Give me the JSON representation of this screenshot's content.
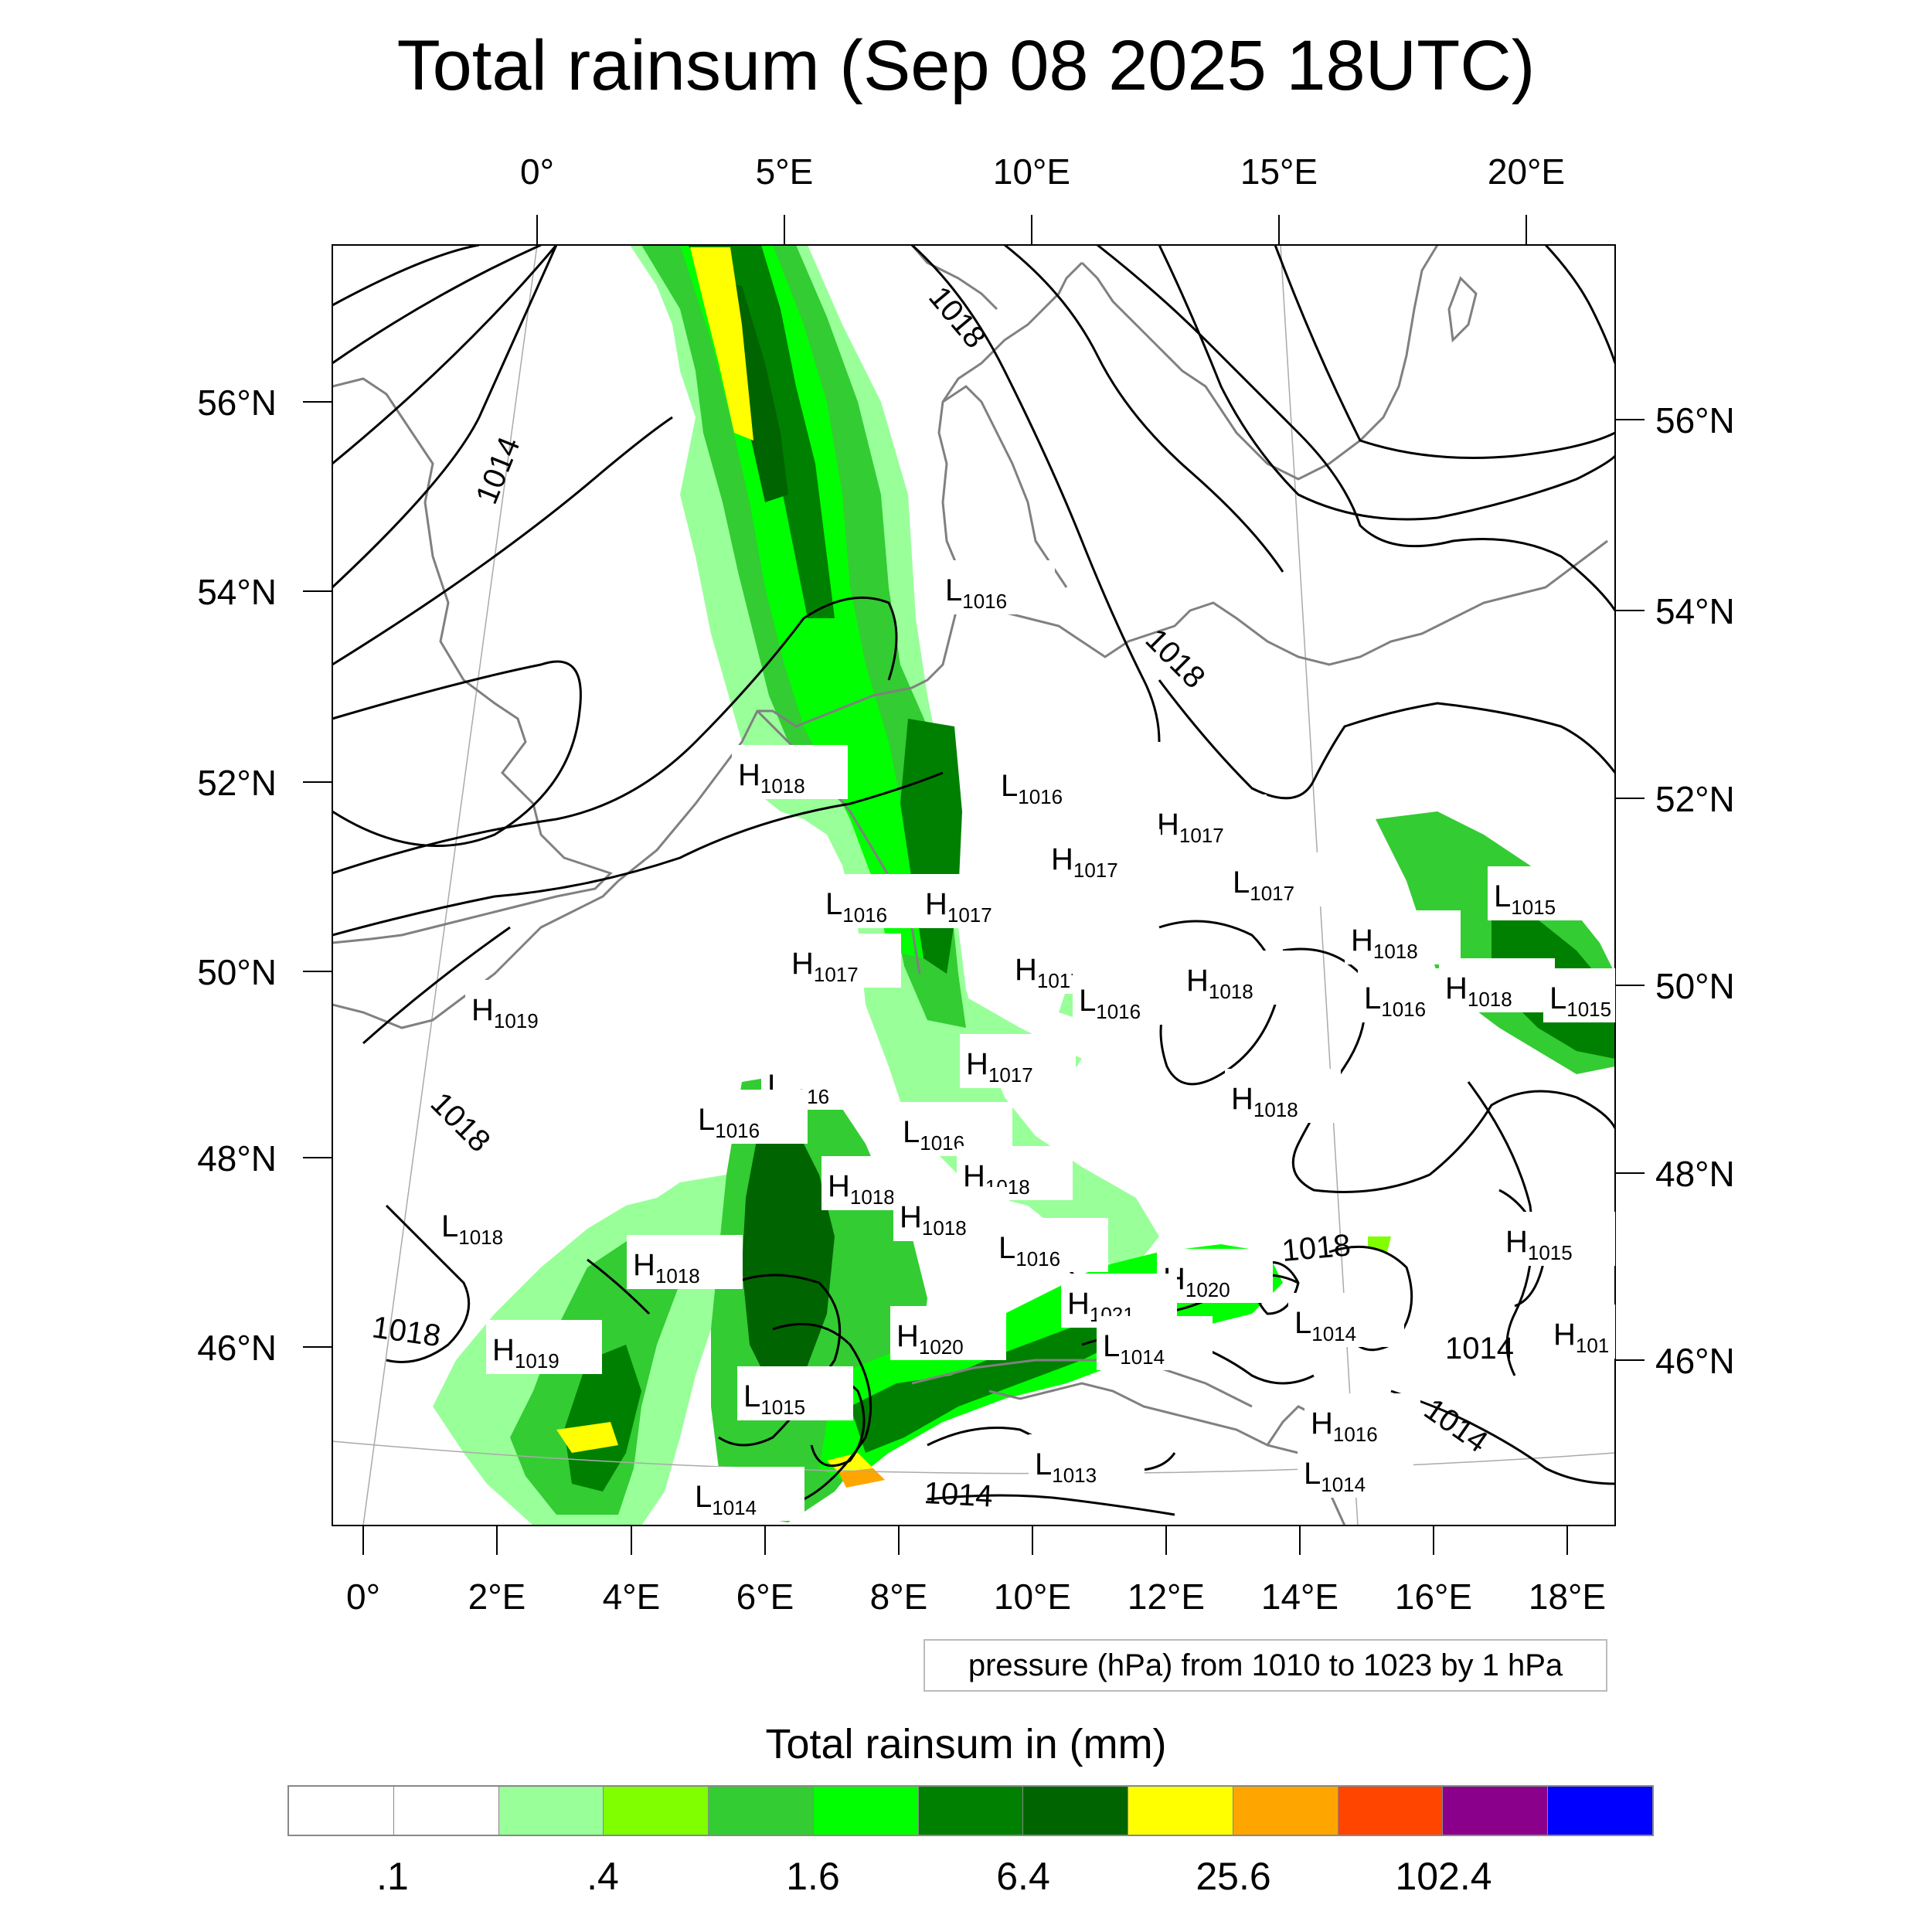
{
  "title": "Total rainsum (Sep 08 2025 18UTC)",
  "map": {
    "top_lon_labels": [
      "0°",
      "5°E",
      "10°E",
      "15°E",
      "20°E"
    ],
    "bottom_lon_labels": [
      "0°",
      "2°E",
      "4°E",
      "6°E",
      "8°E",
      "10°E",
      "12°E",
      "14°E",
      "16°E",
      "18°E"
    ],
    "left_lat_labels": [
      "56°N",
      "54°N",
      "52°N",
      "50°N",
      "48°N",
      "46°N"
    ],
    "right_lat_labels": [
      "56°N",
      "54°N",
      "52°N",
      "50°N",
      "48°N",
      "46°N"
    ],
    "coastline_color": "#808080",
    "isobar_color": "#000000",
    "isobar_labels": [
      "1018",
      "1014",
      "1018",
      "1018",
      "1018",
      "1014",
      "1014",
      "1014",
      "1018"
    ],
    "pressure_centers": [
      {
        "type": "L",
        "value": "1016"
      },
      {
        "type": "H",
        "value": "1018"
      },
      {
        "type": "L",
        "value": "1016"
      },
      {
        "type": "H",
        "value": "1017"
      },
      {
        "type": "H",
        "value": "1017"
      },
      {
        "type": "L",
        "value": "1017"
      },
      {
        "type": "L",
        "value": "1015"
      },
      {
        "type": "L",
        "value": "1016"
      },
      {
        "type": "H",
        "value": "1017"
      },
      {
        "type": "H",
        "value": "1017"
      },
      {
        "type": "H",
        "value": "1017"
      },
      {
        "type": "L",
        "value": "1016"
      },
      {
        "type": "H",
        "value": "1018"
      },
      {
        "type": "H",
        "value": "1018"
      },
      {
        "type": "L",
        "value": "1016"
      },
      {
        "type": "H",
        "value": "1018"
      },
      {
        "type": "L",
        "value": "1015"
      },
      {
        "type": "H",
        "value": "1019"
      },
      {
        "type": "H",
        "value": "1017"
      },
      {
        "type": "L",
        "value": "1016"
      },
      {
        "type": "L",
        "value": "1016"
      },
      {
        "type": "H",
        "value": "1018"
      },
      {
        "type": "L",
        "value": "1016"
      },
      {
        "type": "H",
        "value": "1018"
      },
      {
        "type": "H",
        "value": "1018"
      },
      {
        "type": "H",
        "value": "1018"
      },
      {
        "type": "L",
        "value": "1018"
      },
      {
        "type": "H",
        "value": "1018"
      },
      {
        "type": "L",
        "value": "1016"
      },
      {
        "type": "H",
        "value": "1020"
      },
      {
        "type": "H",
        "value": "1015"
      },
      {
        "type": "H",
        "value": "1021"
      },
      {
        "type": "H",
        "value": "1020"
      },
      {
        "type": "L",
        "value": "1014"
      },
      {
        "type": "L",
        "value": "1014"
      },
      {
        "type": "H",
        "value": "101"
      },
      {
        "type": "H",
        "value": "1019"
      },
      {
        "type": "L",
        "value": "1015"
      },
      {
        "type": "H",
        "value": "1016"
      },
      {
        "type": "L",
        "value": "1013"
      },
      {
        "type": "L",
        "value": "1014"
      },
      {
        "type": "L",
        "value": "1014"
      }
    ]
  },
  "pressure_note": "pressure (hPa) from 1010 to 1023 by 1 hPa",
  "legend": {
    "title": "Total rainsum in (mm)",
    "colors": [
      "#ffffff",
      "#ffffff",
      "#99ff99",
      "#80ff00",
      "#33cc33",
      "#00ff00",
      "#008000",
      "#006400",
      "#ffff00",
      "#ffa500",
      "#ff4500",
      "#8b008b",
      "#0000ff"
    ],
    "labels": [
      ".1",
      ".4",
      "1.6",
      "6.4",
      "25.6",
      "102.4"
    ]
  }
}
